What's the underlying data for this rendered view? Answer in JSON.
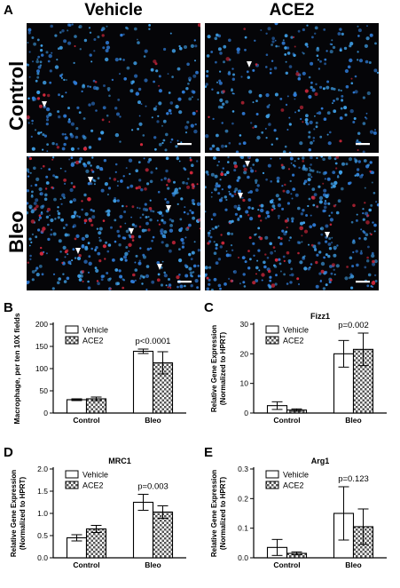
{
  "panelA": {
    "letter": "A",
    "col_titles": [
      "Vehicle",
      "ACE2"
    ],
    "row_titles": [
      "Control",
      "Bleo"
    ]
  },
  "legend_labels": [
    "Vehicle",
    "ACE2"
  ],
  "colors": {
    "vehicle_fill": "#ffffff",
    "ace2_fill": "checkered",
    "nuclei": "#2f7bd6",
    "macrophage": "#d2283c",
    "arrow": "#ffffff"
  },
  "chart_data": [
    {
      "id": "B",
      "letter": "B",
      "type": "bar",
      "title": "",
      "ylabel": "Macrophage, per ten 10X fields",
      "xlabel": "",
      "categories": [
        "Control",
        "Bleo"
      ],
      "ylim": [
        0,
        200
      ],
      "yticks": [
        0,
        50,
        100,
        150,
        200
      ],
      "series": [
        {
          "name": "Vehicle",
          "values": [
            30,
            139
          ],
          "errors": [
            2,
            5
          ]
        },
        {
          "name": "ACE2",
          "values": [
            32,
            113
          ],
          "errors": [
            4,
            25
          ]
        }
      ],
      "annotation": "p<0.0001",
      "grid": false,
      "legend_position": "top-left"
    },
    {
      "id": "C",
      "letter": "C",
      "type": "bar",
      "title": "Fizz1",
      "ylabel": "Relative Gene Expression (Normalized to HPRT)",
      "xlabel": "",
      "categories": [
        "Control",
        "Bleo"
      ],
      "ylim": [
        0,
        30
      ],
      "yticks": [
        0,
        10,
        20,
        30
      ],
      "series": [
        {
          "name": "Vehicle",
          "values": [
            2.5,
            20.0
          ],
          "errors": [
            1.3,
            4.5
          ]
        },
        {
          "name": "ACE2",
          "values": [
            1.0,
            21.5
          ],
          "errors": [
            0.4,
            5.5
          ]
        }
      ],
      "annotation": "p=0.002",
      "grid": false,
      "legend_position": "top-left"
    },
    {
      "id": "D",
      "letter": "D",
      "type": "bar",
      "title": "MRC1",
      "ylabel": "Relative Gene Expression (Normalized to HPRT)",
      "xlabel": "",
      "categories": [
        "Control",
        "Bleo"
      ],
      "ylim": [
        0,
        2.0
      ],
      "yticks": [
        0.0,
        0.5,
        1.0,
        1.5,
        2.0
      ],
      "series": [
        {
          "name": "Vehicle",
          "values": [
            0.45,
            1.25
          ],
          "errors": [
            0.07,
            0.18
          ]
        },
        {
          "name": "ACE2",
          "values": [
            0.65,
            1.03
          ],
          "errors": [
            0.08,
            0.14
          ]
        }
      ],
      "annotation": "p=0.003",
      "grid": false,
      "legend_position": "top-left"
    },
    {
      "id": "E",
      "letter": "E",
      "type": "bar",
      "title": "Arg1",
      "ylabel": "Relative Gene Expression (Normalized to HPRT)",
      "xlabel": "",
      "categories": [
        "Control",
        "Bleo"
      ],
      "ylim": [
        0,
        0.3
      ],
      "yticks": [
        0.0,
        0.1,
        0.2,
        0.3
      ],
      "series": [
        {
          "name": "Vehicle",
          "values": [
            0.035,
            0.15
          ],
          "errors": [
            0.027,
            0.09
          ]
        },
        {
          "name": "ACE2",
          "values": [
            0.015,
            0.105
          ],
          "errors": [
            0.005,
            0.06
          ]
        }
      ],
      "annotation": "p=0.123",
      "grid": false,
      "legend_position": "top-left"
    }
  ]
}
